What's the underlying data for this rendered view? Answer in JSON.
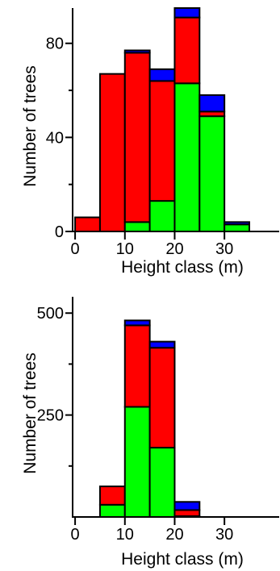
{
  "chart_data": [
    {
      "type": "bar",
      "stacked": true,
      "title": "",
      "xlabel": "Height class (m)",
      "ylabel": "Number of trees",
      "bin_width": 5,
      "x": [
        2.5,
        7.5,
        12.5,
        17.5,
        22.5,
        27.5,
        32.5,
        37.5
      ],
      "xlim": [
        -0.5,
        41
      ],
      "ylim": [
        0,
        95
      ],
      "xticks": [
        "0",
        "10",
        "20",
        "30"
      ],
      "xtick_values": [
        0,
        10,
        20,
        30
      ],
      "yticks": [
        "0",
        "40",
        "80"
      ],
      "ytick_values": [
        0,
        40,
        80
      ],
      "yminor_values": [
        20,
        60
      ],
      "series": [
        {
          "color": "#00ff00",
          "values": [
            0,
            0,
            4,
            13,
            63,
            49,
            3,
            0
          ]
        },
        {
          "color": "#ff0000",
          "values": [
            6,
            67,
            72,
            51,
            28,
            2,
            0,
            0
          ]
        },
        {
          "color": "#0000ff",
          "values": [
            0,
            0,
            1,
            5,
            4,
            7,
            1,
            0
          ]
        }
      ]
    },
    {
      "type": "bar",
      "stacked": true,
      "title": "",
      "xlabel": "Height class (m)",
      "ylabel": "Number of trees",
      "bin_width": 5,
      "x": [
        2.5,
        7.5,
        12.5,
        17.5,
        22.5,
        27.5,
        32.5,
        37.5
      ],
      "xlim": [
        -0.5,
        41
      ],
      "ylim": [
        0,
        540
      ],
      "xticks": [
        "0",
        "10",
        "20",
        "30"
      ],
      "xtick_values": [
        0,
        10,
        20,
        30
      ],
      "yticks": [
        "250",
        "500"
      ],
      "ytick_values": [
        250,
        500
      ],
      "yminor_values": [
        125,
        375
      ],
      "series": [
        {
          "color": "#00ff00",
          "values": [
            0,
            30,
            270,
            170,
            2,
            0,
            0,
            0
          ]
        },
        {
          "color": "#ff0000",
          "values": [
            0,
            45,
            200,
            245,
            15,
            0,
            0,
            0
          ]
        },
        {
          "color": "#0000ff",
          "values": [
            0,
            0,
            12,
            15,
            20,
            0,
            0,
            0
          ]
        }
      ]
    }
  ]
}
